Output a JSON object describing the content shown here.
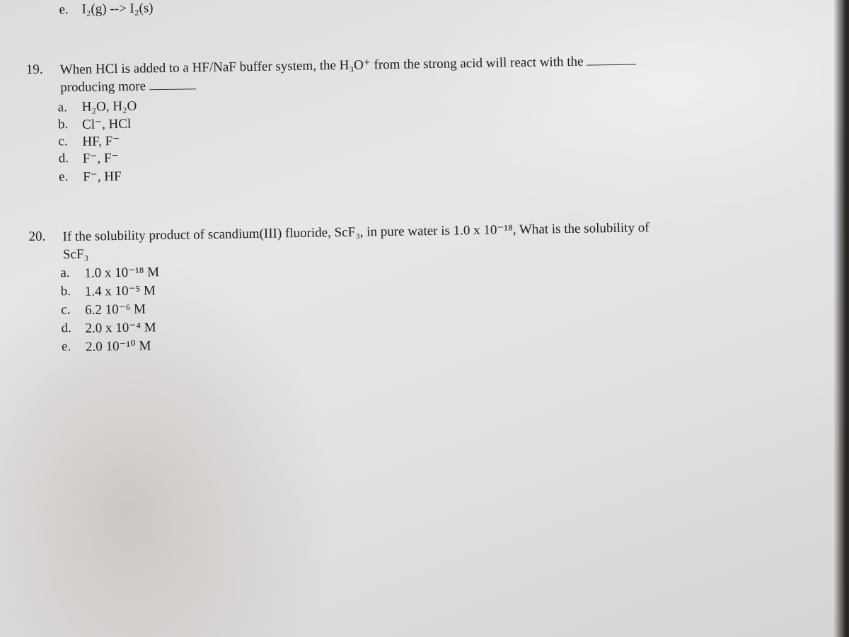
{
  "prev_item": {
    "label": "e.",
    "text": "I₂(g) --> I₂(s)"
  },
  "questions": [
    {
      "number": "19.",
      "text": "When HCl is added to a HF/NaF buffer system, the H₃O⁺ from the strong acid will react with the",
      "continuation": "producing more",
      "options": [
        {
          "label": "a.",
          "text": "H₂O, H₂O"
        },
        {
          "label": "b.",
          "text": "Cl⁻, HCl"
        },
        {
          "label": "c.",
          "text": "HF, F⁻"
        },
        {
          "label": "d.",
          "text": "F⁻, F⁻"
        },
        {
          "label": "e.",
          "text": "F⁻, HF"
        }
      ]
    },
    {
      "number": "20.",
      "text": "If the solubility product of scandium(III) fluoride, ScF₃, in pure water is 1.0 x 10⁻¹⁸, What is the  solubility of",
      "continuation": "ScF₃",
      "options": [
        {
          "label": "a.",
          "text": "1.0 x 10⁻¹⁸ M"
        },
        {
          "label": "b.",
          "text": "1.4 x 10⁻⁵ M"
        },
        {
          "label": "c.",
          "text": "6.2 10⁻⁶ M"
        },
        {
          "label": "d.",
          "text": "2.0 x 10⁻⁴ M"
        },
        {
          "label": "e.",
          "text": "2.0 10⁻¹⁰ M"
        }
      ]
    }
  ]
}
